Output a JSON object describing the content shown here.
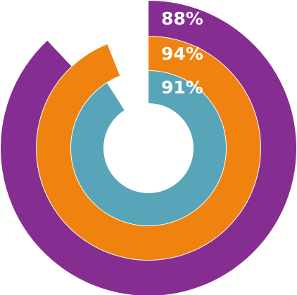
{
  "chart_data": {
    "type": "pie",
    "subtype": "concentric-radial-progress",
    "start_angle": "top",
    "direction": "clockwise",
    "rings": [
      {
        "value": 88,
        "label": "88%",
        "color": "#862d91"
      },
      {
        "value": 94,
        "label": "94%",
        "color": "#f0820f"
      },
      {
        "value": 91,
        "label": "91%",
        "color": "#58a4b8"
      }
    ]
  }
}
